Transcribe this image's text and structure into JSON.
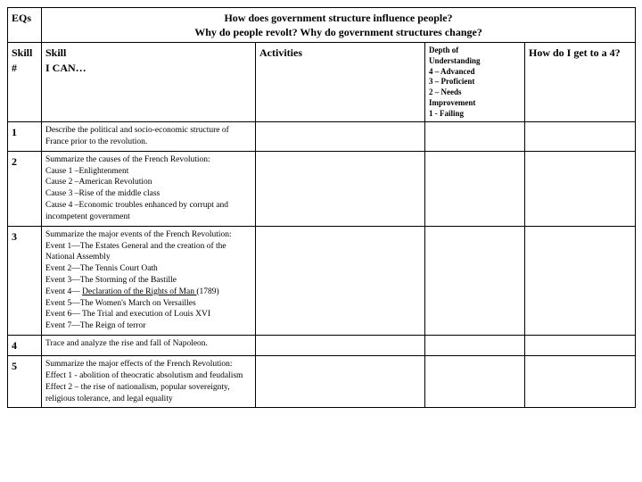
{
  "header": {
    "eqs": "EQs",
    "title_line1": "How does government structure influence people?",
    "title_line2": "Why do people revolt?  Why do government structures change?",
    "skill_num": "Skill #",
    "skill_ican_1": "Skill",
    "skill_ican_2": "I CAN…",
    "activities": "Activities",
    "depth_l1": "Depth of",
    "depth_l2": "Understanding",
    "depth_l3": "4 – Advanced",
    "depth_l4": "3 – Proficient",
    "depth_l5": "2 – Needs",
    "depth_l6": "Improvement",
    "depth_l7": "1 - Failing",
    "how": "How do I get to a 4?"
  },
  "rows": {
    "r1": {
      "num": "1",
      "text": "Describe the political and socio-economic structure of France prior to the revolution."
    },
    "r2": {
      "num": "2",
      "l1": "Summarize the causes of the French Revolution:",
      "l2": "Cause 1 –Enlightenment",
      "l3": "Cause 2 –American Revolution",
      "l4": "Cause 3 –Rise of the middle class",
      "l5": "Cause 4 –Economic troubles enhanced by corrupt and incompetent government"
    },
    "r3": {
      "num": "3",
      "l1": "Summarize the major events of the French Revolution:",
      "l2": "Event 1—The Estates General and the creation of the National Assembly",
      "l3": "Event 2—The Tennis Court Oath",
      "l4": "Event 3—The Storming of the Bastille",
      "l5a": "Event 4— ",
      "l5b": "Declaration of the Rights of Man ",
      "l5c": "(1789)",
      "l6": "Event 5—The Women's March on Versailles",
      "l7": "Event 6— The Trial and execution of Louis XVI",
      "l8": "Event 7—The Reign of terror"
    },
    "r4": {
      "num": "4",
      "text": "Trace and analyze the rise and fall of Napoleon."
    },
    "r5": {
      "num": "5",
      "l1": "Summarize the major effects of the French Revolution:",
      "l2": "Effect 1 - abolition of theocratic absolutism and feudalism",
      "l3": "Effect 2 – the rise of nationalism, popular sovereignty, religious tolerance, and legal equality"
    }
  }
}
